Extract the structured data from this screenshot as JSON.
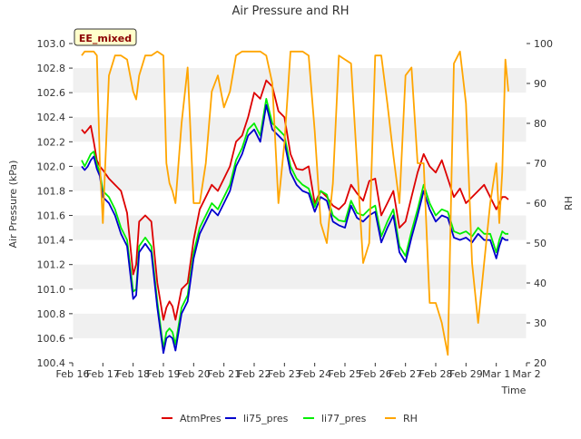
{
  "chart_data": {
    "type": "line",
    "title": "Air Pressure and RH",
    "site_label": "EE_mixed",
    "xlabel": "Time",
    "ylabel_left": "Air Pressure (kPa)",
    "ylabel_right": "RH",
    "x_ticks": [
      "Feb 16",
      "Feb 17",
      "Feb 18",
      "Feb 19",
      "Feb 20",
      "Feb 21",
      "Feb 22",
      "Feb 23",
      "Feb 24",
      "Feb 25",
      "Feb 26",
      "Feb 27",
      "Feb 28",
      "Feb 29",
      "Mar 1",
      "Mar 2"
    ],
    "y_left_ticks": [
      "100.4",
      "100.6",
      "100.8",
      "101.0",
      "101.2",
      "101.4",
      "101.6",
      "101.8",
      "102.0",
      "102.2",
      "102.4",
      "102.6",
      "102.8",
      "103.0"
    ],
    "y_right_ticks": [
      "20",
      "30",
      "40",
      "50",
      "60",
      "70",
      "80",
      "90",
      "100"
    ],
    "xlim": [
      0,
      15
    ],
    "ylim_left": [
      100.4,
      103.0
    ],
    "ylim_right": [
      20,
      100
    ],
    "grid": "horizontal bands",
    "legend_position": "bottom",
    "colors": {
      "AtmPres": "#dd0000",
      "li75_pres": "#0000cc",
      "li77_pres": "#00ee00",
      "RH": "#ffa500",
      "band": "#f0f0f0"
    },
    "x_days": [
      0.3,
      0.4,
      0.5,
      0.6,
      0.7,
      0.8,
      0.9,
      1.0,
      1.2,
      1.4,
      1.6,
      1.8,
      2.0,
      2.1,
      2.2,
      2.4,
      2.6,
      2.8,
      3.0,
      3.1,
      3.2,
      3.3,
      3.4,
      3.6,
      3.8,
      4.0,
      4.2,
      4.4,
      4.6,
      4.8,
      5.0,
      5.2,
      5.4,
      5.6,
      5.8,
      6.0,
      6.2,
      6.4,
      6.6,
      6.8,
      7.0,
      7.2,
      7.4,
      7.6,
      7.8,
      8.0,
      8.2,
      8.4,
      8.6,
      8.8,
      9.0,
      9.2,
      9.4,
      9.6,
      9.8,
      10.0,
      10.2,
      10.4,
      10.6,
      10.8,
      11.0,
      11.2,
      11.4,
      11.6,
      11.8,
      12.0,
      12.2,
      12.4,
      12.6,
      12.8,
      13.0,
      13.2,
      13.4,
      13.6,
      13.8,
      14.0,
      14.1,
      14.2,
      14.3,
      14.4
    ],
    "series": [
      {
        "name": "AtmPres",
        "values": [
          102.3,
          102.27,
          102.3,
          102.33,
          102.2,
          102.05,
          102.0,
          101.97,
          101.9,
          101.85,
          101.8,
          101.62,
          101.12,
          101.2,
          101.55,
          101.6,
          101.55,
          101.05,
          100.75,
          100.85,
          100.9,
          100.86,
          100.75,
          101.0,
          101.05,
          101.4,
          101.65,
          101.75,
          101.85,
          101.8,
          101.9,
          102.0,
          102.2,
          102.25,
          102.4,
          102.6,
          102.55,
          102.7,
          102.65,
          102.45,
          102.4,
          102.1,
          101.98,
          101.97,
          102.0,
          101.7,
          101.8,
          101.75,
          101.68,
          101.65,
          101.7,
          101.85,
          101.78,
          101.72,
          101.88,
          101.9,
          101.6,
          101.7,
          101.8,
          101.5,
          101.55,
          101.75,
          101.95,
          102.1,
          102.0,
          101.95,
          102.05,
          101.9,
          101.75,
          101.82,
          101.7,
          101.75,
          101.8,
          101.85,
          101.75,
          101.65,
          101.7,
          101.75,
          101.75,
          101.73
        ]
      },
      {
        "name": "li75_pres",
        "values": [
          102.0,
          101.97,
          102.0,
          102.05,
          102.08,
          101.98,
          101.92,
          101.75,
          101.7,
          101.6,
          101.45,
          101.35,
          100.92,
          100.95,
          101.3,
          101.37,
          101.3,
          100.85,
          100.48,
          100.6,
          100.62,
          100.6,
          100.5,
          100.8,
          100.9,
          101.25,
          101.45,
          101.55,
          101.65,
          101.6,
          101.7,
          101.8,
          102.0,
          102.1,
          102.25,
          102.3,
          102.2,
          102.5,
          102.3,
          102.25,
          102.2,
          101.95,
          101.85,
          101.8,
          101.78,
          101.63,
          101.75,
          101.72,
          101.55,
          101.52,
          101.5,
          101.68,
          101.58,
          101.55,
          101.6,
          101.63,
          101.38,
          101.5,
          101.6,
          101.3,
          101.22,
          101.42,
          101.6,
          101.8,
          101.65,
          101.55,
          101.6,
          101.58,
          101.42,
          101.4,
          101.42,
          101.38,
          101.45,
          101.4,
          101.4,
          101.25,
          101.35,
          101.42,
          101.4,
          101.4
        ]
      },
      {
        "name": "li77_pres",
        "values": [
          102.05,
          102.0,
          102.05,
          102.1,
          102.12,
          102.02,
          101.95,
          101.8,
          101.75,
          101.65,
          101.5,
          101.4,
          100.98,
          101.0,
          101.35,
          101.42,
          101.35,
          100.9,
          100.52,
          100.65,
          100.68,
          100.65,
          100.55,
          100.85,
          100.95,
          101.3,
          101.5,
          101.6,
          101.7,
          101.65,
          101.75,
          101.85,
          102.05,
          102.15,
          102.3,
          102.35,
          102.25,
          102.55,
          102.35,
          102.3,
          102.25,
          102.0,
          101.9,
          101.85,
          101.82,
          101.67,
          101.8,
          101.77,
          101.6,
          101.56,
          101.55,
          101.72,
          101.62,
          101.6,
          101.65,
          101.68,
          101.43,
          101.55,
          101.65,
          101.35,
          101.27,
          101.47,
          101.65,
          101.85,
          101.7,
          101.6,
          101.65,
          101.63,
          101.47,
          101.45,
          101.47,
          101.43,
          101.5,
          101.45,
          101.45,
          101.3,
          101.4,
          101.47,
          101.45,
          101.45
        ]
      },
      {
        "name": "RH",
        "values": [
          97,
          98,
          98,
          98,
          98,
          97,
          70,
          55,
          92,
          97,
          97,
          96,
          88,
          86,
          92,
          97,
          97,
          98,
          97,
          70,
          65,
          63,
          60,
          80,
          94,
          60,
          60,
          70,
          88,
          92,
          84,
          88,
          97,
          98,
          98,
          98,
          98,
          97,
          90,
          60,
          75,
          98,
          98,
          98,
          97,
          78,
          55,
          50,
          65,
          97,
          96,
          95,
          70,
          45,
          50,
          97,
          97,
          85,
          72,
          60,
          92,
          94,
          70,
          70,
          35,
          35,
          30,
          22,
          95,
          98,
          85,
          45,
          30,
          45,
          60,
          70,
          55,
          68,
          96,
          88
        ]
      }
    ]
  },
  "legend": {
    "items": [
      {
        "label": "AtmPres",
        "color": "#dd0000"
      },
      {
        "label": "li75_pres",
        "color": "#0000cc"
      },
      {
        "label": "li77_pres",
        "color": "#00ee00"
      },
      {
        "label": "RH",
        "color": "#ffa500"
      }
    ]
  }
}
